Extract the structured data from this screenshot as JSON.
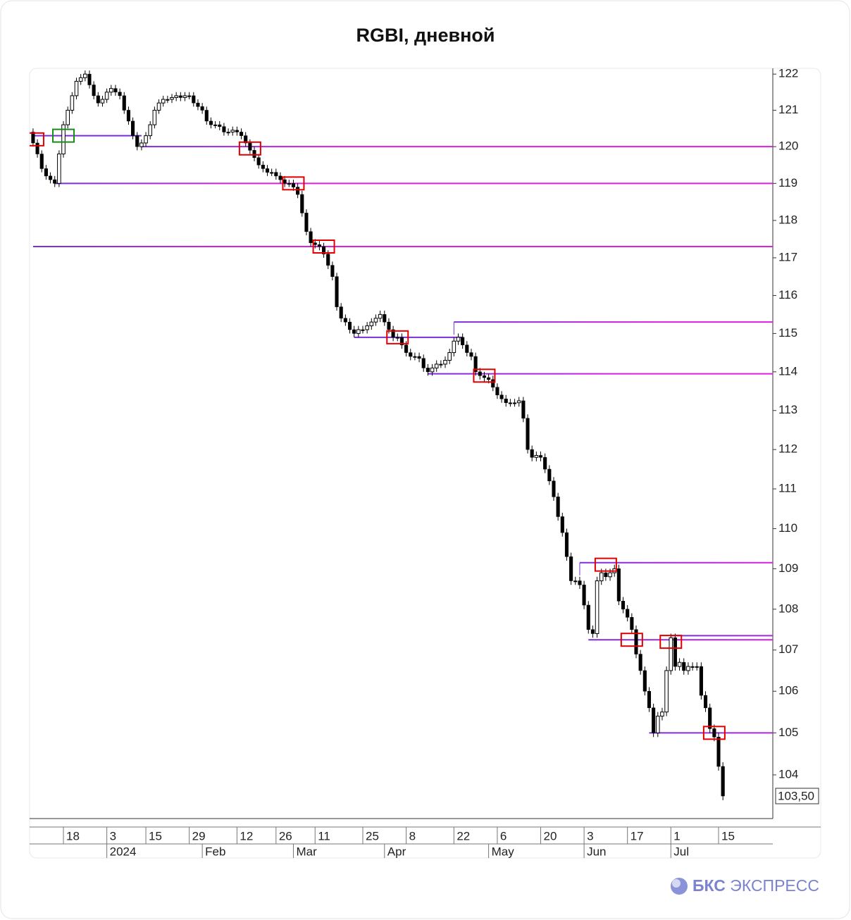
{
  "chart_data": {
    "type": "candlestick",
    "title": "RGBI, дневной",
    "log_scale": true,
    "ylim": [
      102.97,
      122.16
    ],
    "yticks": [
      104,
      105,
      106,
      107,
      108,
      109,
      110,
      111,
      112,
      113,
      114,
      115,
      116,
      117,
      118,
      119,
      120,
      121,
      122
    ],
    "xlim": [
      -0.8,
      170.5
    ],
    "xticks": [
      {
        "value": 7,
        "label": "18"
      },
      {
        "value": 17,
        "label": "3"
      },
      {
        "value": 26,
        "label": "15"
      },
      {
        "value": 36,
        "label": "29"
      },
      {
        "value": 47,
        "label": "12"
      },
      {
        "value": 56,
        "label": "26"
      },
      {
        "value": 65,
        "label": "11"
      },
      {
        "value": 76,
        "label": "25"
      },
      {
        "value": 86,
        "label": "8"
      },
      {
        "value": 97,
        "label": "22"
      },
      {
        "value": 107,
        "label": "6"
      },
      {
        "value": 117,
        "label": "20"
      },
      {
        "value": 127,
        "label": "3"
      },
      {
        "value": 137,
        "label": "17"
      },
      {
        "value": 147,
        "label": "1"
      },
      {
        "value": 158,
        "label": "15"
      }
    ],
    "month_ticks": [
      {
        "value": 17,
        "label": "2024"
      },
      {
        "value": 39,
        "label": "Feb"
      },
      {
        "value": 60,
        "label": "Mar"
      },
      {
        "value": 81,
        "label": "Apr"
      },
      {
        "value": 105,
        "label": "May"
      },
      {
        "value": 127,
        "label": "Jun"
      },
      {
        "value": 147,
        "label": "Jul"
      }
    ],
    "up_color": "#ffffff",
    "down_color": "#000000",
    "open": [
      120.4,
      120.1,
      119.8,
      119.4,
      119.2,
      119.1,
      119.0,
      119.8,
      120.6,
      121.0,
      121.4,
      121.8,
      121.9,
      122.0,
      121.7,
      121.4,
      121.2,
      121.3,
      121.5,
      121.6,
      121.5,
      121.4,
      121.0,
      120.7,
      120.3,
      120.0,
      120.1,
      120.3,
      120.6,
      121.0,
      121.2,
      121.3,
      121.3,
      121.35,
      121.4,
      121.35,
      121.4,
      121.4,
      121.2,
      121.1,
      121.0,
      120.7,
      120.6,
      120.6,
      120.55,
      120.4,
      120.4,
      120.45,
      120.4,
      120.3,
      120.1,
      119.9,
      119.7,
      119.5,
      119.4,
      119.3,
      119.3,
      119.2,
      119.1,
      119.0,
      119.0,
      118.9,
      118.7,
      118.2,
      117.7,
      117.4,
      117.35,
      117.3,
      117.1,
      116.8,
      116.5,
      115.7,
      115.4,
      115.3,
      115.1,
      115.0,
      115.1,
      115.1,
      115.2,
      115.3,
      115.4,
      115.5,
      115.3,
      115.1,
      114.9,
      114.9,
      114.7,
      114.5,
      114.4,
      114.4,
      114.35,
      114.1,
      114.0,
      114.1,
      114.2,
      114.2,
      114.3,
      114.5,
      114.8,
      114.9,
      114.7,
      114.5,
      114.4,
      114.0,
      113.9,
      113.85,
      113.8,
      113.6,
      113.4,
      113.3,
      113.2,
      113.2,
      113.2,
      113.25,
      112.8,
      112.0,
      111.8,
      111.85,
      111.8,
      111.5,
      111.2,
      110.8,
      110.3,
      109.9,
      109.3,
      108.7,
      108.7,
      108.6,
      108.1,
      107.5,
      107.4,
      108.7,
      108.9,
      108.8,
      108.9,
      109.0,
      108.2,
      108.0,
      107.8,
      107.5,
      106.9,
      106.5,
      106.0,
      105.6,
      105.0,
      105.4,
      105.5,
      106.5,
      107.3,
      106.6,
      106.7,
      106.5,
      106.6,
      106.6,
      106.6,
      105.9,
      105.6,
      105.1,
      104.9,
      104.2
    ],
    "high": [
      120.5,
      120.2,
      119.9,
      119.5,
      119.3,
      119.2,
      119.9,
      120.7,
      121.1,
      121.5,
      121.9,
      122.0,
      122.1,
      122.1,
      121.8,
      121.5,
      121.4,
      121.6,
      121.7,
      121.7,
      121.6,
      121.5,
      121.1,
      120.8,
      120.4,
      120.2,
      120.4,
      120.7,
      121.1,
      121.3,
      121.4,
      121.4,
      121.45,
      121.5,
      121.5,
      121.5,
      121.5,
      121.5,
      121.3,
      121.2,
      121.1,
      120.8,
      120.7,
      120.7,
      120.65,
      120.5,
      120.55,
      120.55,
      120.5,
      120.4,
      120.2,
      120.0,
      119.8,
      119.6,
      119.5,
      119.4,
      119.4,
      119.3,
      119.2,
      119.1,
      119.1,
      119.0,
      118.8,
      118.3,
      117.8,
      117.5,
      117.45,
      117.4,
      117.2,
      116.9,
      116.6,
      115.8,
      115.5,
      115.4,
      115.2,
      115.2,
      115.2,
      115.3,
      115.4,
      115.5,
      115.6,
      115.6,
      115.4,
      115.2,
      115.0,
      115.0,
      114.8,
      114.6,
      114.5,
      114.5,
      114.45,
      114.2,
      114.2,
      114.3,
      114.3,
      114.4,
      114.6,
      114.9,
      115.0,
      115.0,
      114.8,
      114.6,
      114.5,
      114.1,
      114.0,
      113.95,
      113.9,
      113.7,
      113.5,
      113.4,
      113.3,
      113.3,
      113.35,
      113.35,
      112.9,
      112.1,
      111.95,
      111.95,
      111.9,
      111.6,
      111.3,
      110.9,
      110.4,
      110.0,
      109.4,
      108.8,
      108.8,
      108.7,
      108.2,
      107.6,
      108.8,
      109.0,
      109.0,
      109.0,
      109.1,
      109.1,
      108.3,
      108.1,
      107.9,
      107.6,
      107.0,
      106.6,
      106.1,
      105.7,
      105.5,
      105.6,
      106.6,
      107.4,
      107.4,
      106.8,
      106.8,
      106.7,
      106.7,
      106.7,
      106.7,
      106.0,
      105.7,
      105.2,
      105.0,
      104.3
    ],
    "low": [
      120.0,
      119.7,
      119.3,
      119.1,
      119.0,
      118.9,
      118.9,
      119.7,
      120.5,
      120.9,
      121.3,
      121.7,
      121.8,
      121.6,
      121.3,
      121.1,
      121.1,
      121.2,
      121.4,
      121.4,
      121.3,
      120.9,
      120.6,
      120.2,
      119.9,
      119.9,
      120.0,
      120.2,
      120.5,
      120.9,
      121.1,
      121.2,
      121.2,
      121.25,
      121.25,
      121.25,
      121.3,
      121.1,
      121.0,
      120.9,
      120.6,
      120.5,
      120.5,
      120.45,
      120.3,
      120.3,
      120.3,
      120.3,
      120.2,
      120.0,
      119.8,
      119.6,
      119.4,
      119.3,
      119.2,
      119.2,
      119.1,
      119.0,
      118.9,
      118.9,
      118.8,
      118.6,
      118.1,
      117.6,
      117.3,
      117.25,
      117.2,
      117.0,
      116.7,
      116.4,
      115.6,
      115.3,
      115.2,
      115.0,
      114.9,
      114.9,
      115.0,
      115.0,
      115.1,
      115.2,
      115.3,
      115.2,
      115.0,
      114.8,
      114.8,
      114.6,
      114.4,
      114.3,
      114.3,
      114.25,
      114.0,
      113.9,
      113.9,
      114.0,
      114.1,
      114.1,
      114.2,
      114.4,
      114.7,
      114.6,
      114.4,
      114.3,
      113.9,
      113.8,
      113.75,
      113.7,
      113.5,
      113.3,
      113.2,
      113.1,
      113.1,
      113.1,
      113.1,
      112.7,
      111.9,
      111.7,
      111.7,
      111.7,
      111.4,
      111.1,
      110.7,
      110.2,
      109.8,
      109.2,
      108.6,
      108.6,
      108.5,
      108.0,
      107.4,
      107.3,
      107.3,
      108.6,
      108.7,
      108.7,
      108.8,
      108.1,
      107.9,
      107.7,
      107.4,
      106.8,
      106.4,
      105.9,
      105.5,
      104.9,
      104.9,
      105.3,
      105.4,
      106.4,
      106.5,
      106.5,
      106.4,
      106.4,
      106.5,
      106.5,
      105.8,
      105.5,
      105.0,
      104.8,
      104.1,
      103.4
    ],
    "close": [
      120.1,
      119.8,
      119.4,
      119.2,
      119.1,
      119.0,
      119.8,
      120.6,
      121.0,
      121.4,
      121.8,
      121.9,
      122.0,
      121.7,
      121.4,
      121.2,
      121.3,
      121.5,
      121.6,
      121.5,
      121.4,
      121.0,
      120.7,
      120.3,
      120.0,
      120.1,
      120.3,
      120.6,
      121.0,
      121.2,
      121.3,
      121.3,
      121.35,
      121.4,
      121.35,
      121.4,
      121.4,
      121.2,
      121.1,
      121.0,
      120.7,
      120.6,
      120.6,
      120.55,
      120.4,
      120.4,
      120.45,
      120.4,
      120.3,
      120.1,
      119.9,
      119.7,
      119.5,
      119.4,
      119.3,
      119.3,
      119.2,
      119.1,
      119.0,
      119.0,
      118.9,
      118.7,
      118.2,
      117.7,
      117.4,
      117.35,
      117.3,
      117.1,
      116.8,
      116.5,
      115.7,
      115.4,
      115.3,
      115.1,
      115.0,
      115.1,
      115.1,
      115.2,
      115.3,
      115.4,
      115.5,
      115.3,
      115.1,
      114.9,
      114.9,
      114.7,
      114.5,
      114.4,
      114.4,
      114.35,
      114.1,
      114.0,
      114.1,
      114.2,
      114.2,
      114.3,
      114.5,
      114.8,
      114.9,
      114.7,
      114.5,
      114.4,
      114.0,
      113.9,
      113.85,
      113.8,
      113.6,
      113.4,
      113.3,
      113.2,
      113.2,
      113.2,
      113.25,
      112.8,
      112.0,
      111.8,
      111.85,
      111.8,
      111.5,
      111.2,
      110.8,
      110.3,
      109.9,
      109.3,
      108.7,
      108.7,
      108.6,
      108.1,
      107.5,
      107.4,
      108.7,
      108.9,
      108.8,
      108.9,
      109.0,
      108.2,
      108.0,
      107.8,
      107.5,
      106.9,
      106.5,
      106.0,
      105.6,
      105.0,
      105.4,
      105.5,
      106.5,
      107.3,
      106.6,
      106.7,
      106.5,
      106.6,
      106.6,
      106.6,
      105.9,
      105.6,
      105.1,
      104.9,
      104.2,
      103.5
    ],
    "last_price": {
      "value": 103.5,
      "label": "103,50"
    },
    "level_colors": [
      "#7a2fd8",
      "#e01ee0"
    ],
    "rays": [
      {
        "value": 120.0,
        "start": 25
      },
      {
        "value": 119.0,
        "start": 5
      },
      {
        "value": 117.3,
        "start": 0
      },
      {
        "value": 115.3,
        "start": 97
      },
      {
        "value": 113.95,
        "start": 91
      },
      {
        "value": 109.15,
        "start": 126
      },
      {
        "value": 107.35,
        "start": 147
      },
      {
        "value": 107.25,
        "start": 128
      },
      {
        "value": 105.0,
        "start": 142
      }
    ],
    "segments": [
      {
        "value": 120.3,
        "start": 0,
        "end": 25
      },
      {
        "value": 114.9,
        "start": 74,
        "end": 99
      }
    ],
    "markers": [
      {
        "index": 0,
        "value": 120.2,
        "color": "#e00000"
      },
      {
        "index": 7,
        "value": 120.3,
        "color": "#1a8a1a"
      },
      {
        "index": 50,
        "value": 119.95,
        "color": "#e00000"
      },
      {
        "index": 60,
        "value": 119.0,
        "color": "#e00000"
      },
      {
        "index": 67,
        "value": 117.3,
        "color": "#e00000"
      },
      {
        "index": 84,
        "value": 114.9,
        "color": "#e00000"
      },
      {
        "index": 104,
        "value": 113.9,
        "color": "#e00000"
      },
      {
        "index": 132,
        "value": 109.1,
        "color": "#e00000"
      },
      {
        "index": 138,
        "value": 107.25,
        "color": "#e00000"
      },
      {
        "index": 147,
        "value": 107.2,
        "color": "#e00000"
      },
      {
        "index": 157,
        "value": 105.0,
        "color": "#e00000"
      }
    ]
  },
  "brand": {
    "name": "БКС",
    "suffix": "ЭКСПРЕСС"
  }
}
